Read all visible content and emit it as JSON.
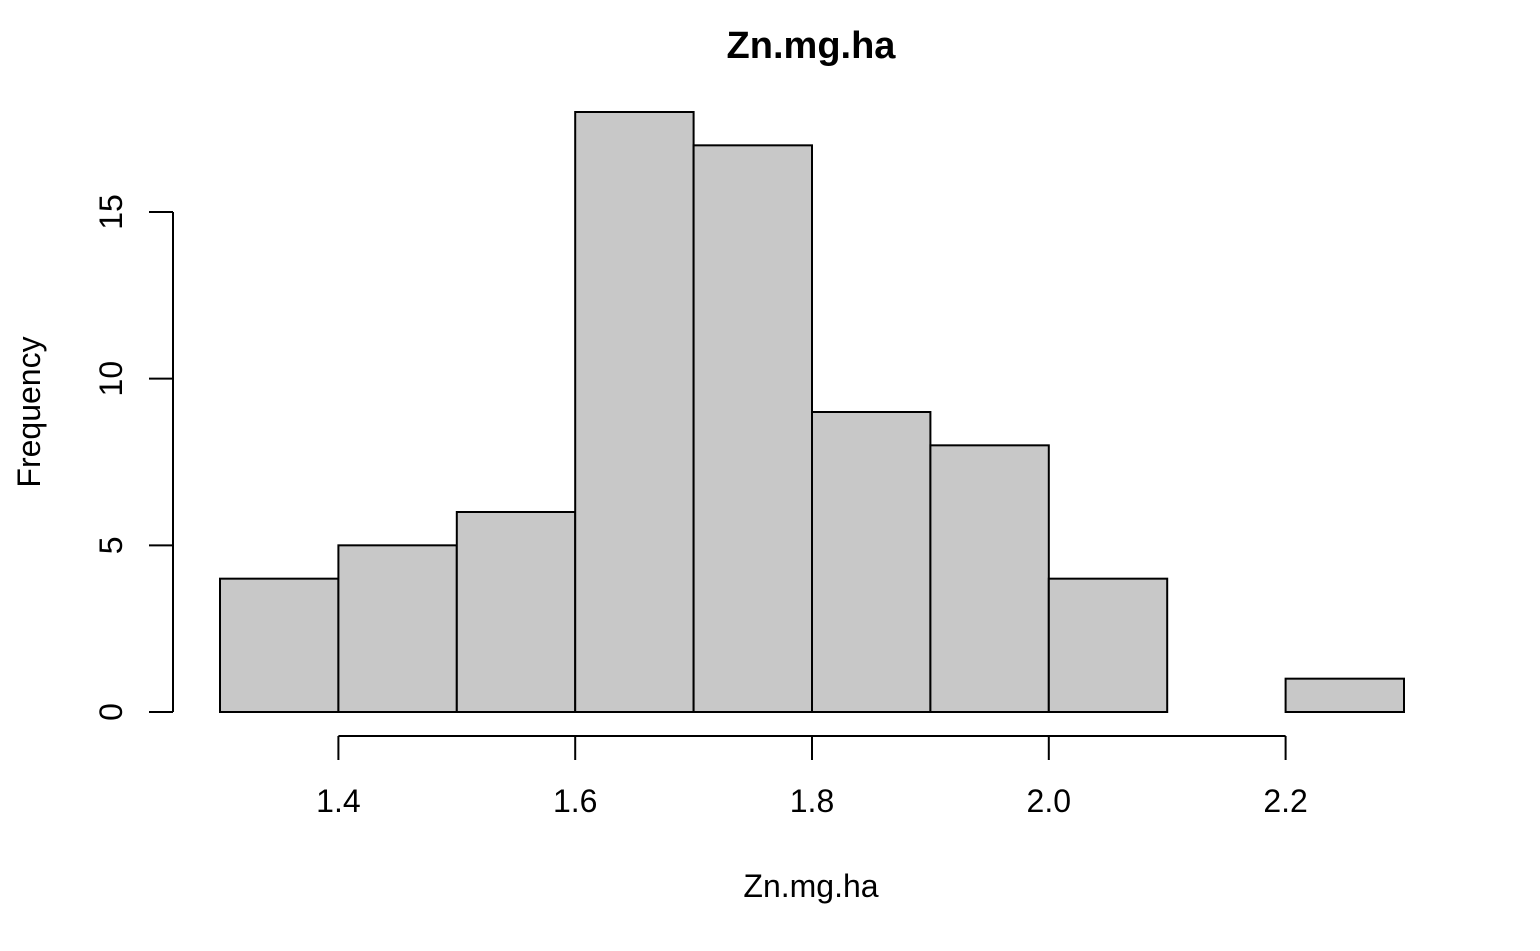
{
  "chart_data": {
    "type": "bar",
    "title": "Zn.mg.ha",
    "xlabel": "Zn.mg.ha",
    "ylabel": "Frequency",
    "bins": [
      {
        "start": 1.3,
        "end": 1.4,
        "count": 4
      },
      {
        "start": 1.4,
        "end": 1.5,
        "count": 5
      },
      {
        "start": 1.5,
        "end": 1.6,
        "count": 6
      },
      {
        "start": 1.6,
        "end": 1.7,
        "count": 18
      },
      {
        "start": 1.7,
        "end": 1.8,
        "count": 17
      },
      {
        "start": 1.8,
        "end": 1.9,
        "count": 9
      },
      {
        "start": 1.9,
        "end": 2.0,
        "count": 8
      },
      {
        "start": 2.0,
        "end": 2.1,
        "count": 4
      },
      {
        "start": 2.1,
        "end": 2.2,
        "count": 0
      },
      {
        "start": 2.2,
        "end": 2.3,
        "count": 1
      }
    ],
    "xlim": [
      1.3,
      2.3
    ],
    "ylim": [
      0,
      18
    ],
    "x_ticks": [
      "1.4",
      "1.6",
      "1.8",
      "2.0",
      "2.2"
    ],
    "y_ticks": [
      "0",
      "5",
      "10",
      "15"
    ],
    "bar_color": "#c8c8c8",
    "edge_color": "#000000",
    "grid": false
  }
}
